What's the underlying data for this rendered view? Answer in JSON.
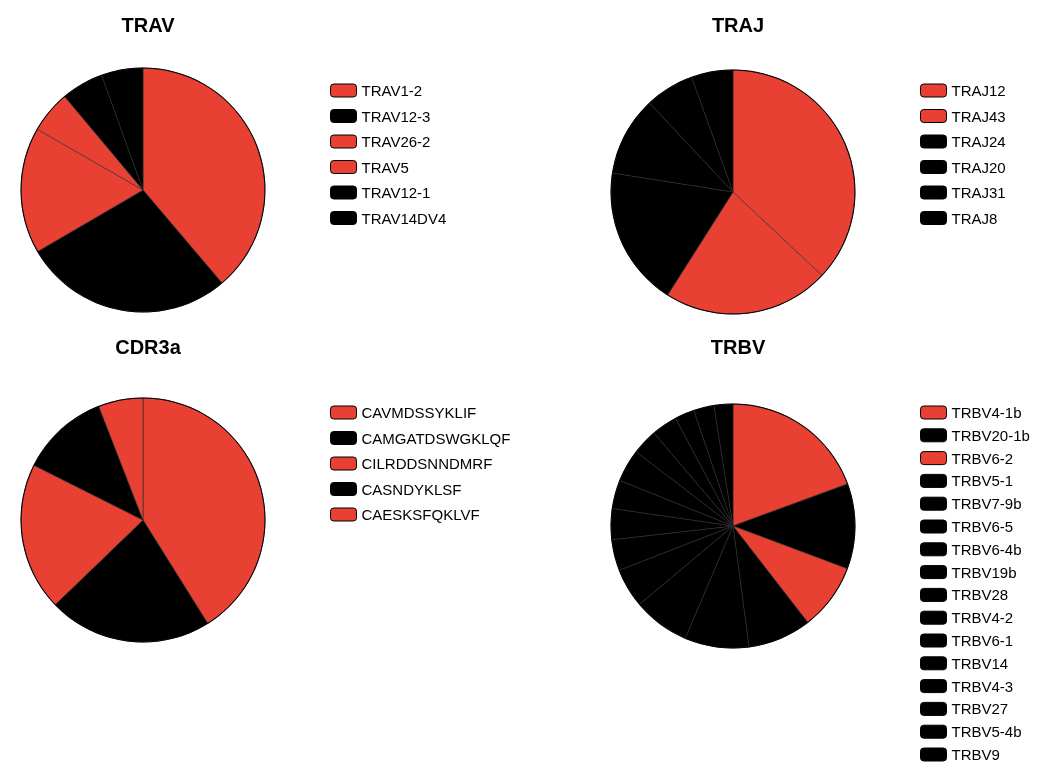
{
  "chart_data": [
    {
      "type": "pie",
      "title": "TRAV",
      "legend": "right",
      "categories": [
        "TRAV1-2",
        "TRAV12-3",
        "TRAV26-2",
        "TRAV5",
        "TRAV12-1",
        "TRAV14DV4"
      ],
      "values": [
        38.8,
        27.8,
        16.7,
        5.6,
        5.6,
        5.5
      ],
      "colors": [
        "#e84134",
        "#000000",
        "#e84134",
        "#e84134",
        "#000000",
        "#000000"
      ]
    },
    {
      "type": "pie",
      "title": "TRAJ",
      "legend": "right",
      "categories": [
        "TRAJ12",
        "TRAJ43",
        "TRAJ24",
        "TRAJ20",
        "TRAJ31",
        "TRAJ8"
      ],
      "values": [
        37,
        22,
        18.5,
        10.5,
        6.5,
        5.5
      ],
      "colors": [
        "#e84134",
        "#e84134",
        "#000000",
        "#000000",
        "#000000",
        "#000000"
      ]
    },
    {
      "type": "pie",
      "title": "CDR3a",
      "legend": "right",
      "categories": [
        "CAVMDSSYKLIF",
        "CAMGATDSWGKLQF",
        "CILRDDSNNDMRF",
        "CASNDYKLSF",
        "CAESKSFQKLVF"
      ],
      "values": [
        41.1,
        21.7,
        19.6,
        11.7,
        5.9
      ],
      "colors": [
        "#e84134",
        "#000000",
        "#e84134",
        "#000000",
        "#e84134"
      ]
    },
    {
      "type": "pie",
      "title": "TRBV",
      "legend": "right",
      "categories": [
        "TRBV4-1b",
        "TRBV20-1b",
        "TRBV6-2",
        "TRBV5-1",
        "TRBV7-9b",
        "TRBV6-5",
        "TRBV6-4b",
        "TRBV19b",
        "TRBV28",
        "TRBV4-2",
        "TRBV6-1",
        "TRBV14",
        "TRBV4-3",
        "TRBV27",
        "TRBV5-4b",
        "TRBV9"
      ],
      "values": [
        19.4,
        11.3,
        8.8,
        8.4,
        8.5,
        7.5,
        5.2,
        4.1,
        4.1,
        3.8,
        4.3,
        3.4,
        3.4,
        2.6,
        2.7,
        2.5
      ],
      "colors": [
        "#e84134",
        "#000000",
        "#e84134",
        "#000000",
        "#000000",
        "#000000",
        "#000000",
        "#000000",
        "#000000",
        "#000000",
        "#000000",
        "#000000",
        "#000000",
        "#000000",
        "#000000",
        "#000000"
      ]
    }
  ]
}
